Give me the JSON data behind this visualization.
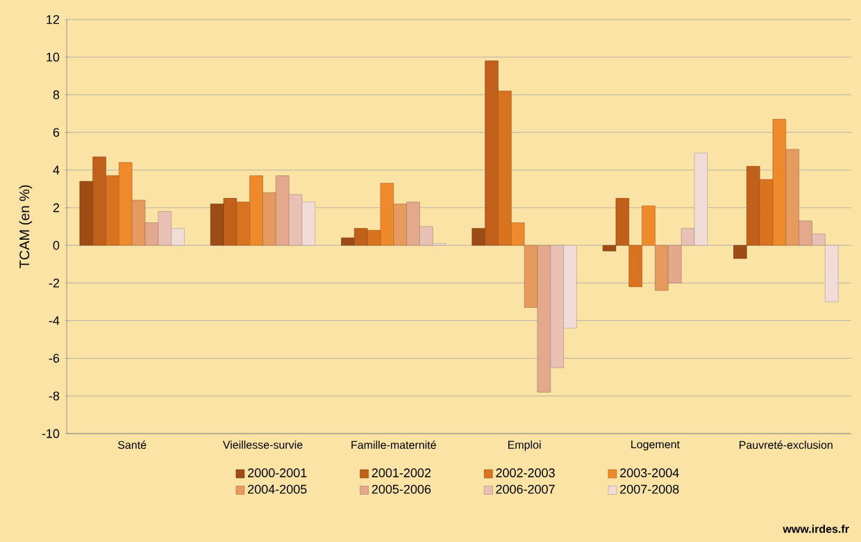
{
  "chart_data": {
    "type": "bar",
    "ylabel": "TCAM (en %)",
    "categories": [
      "Santé",
      "Vieillesse-survie",
      "Famille-maternité",
      "Emploi",
      "Logement",
      "Pauvreté-exclusion"
    ],
    "series": [
      {
        "name": "2000-2001",
        "color": "#9c4c14",
        "values": [
          3.4,
          2.2,
          0.4,
          0.9,
          -0.3,
          -0.7
        ]
      },
      {
        "name": "2001-2002",
        "color": "#c0601a",
        "values": [
          4.7,
          2.5,
          0.9,
          9.8,
          2.5,
          4.2
        ]
      },
      {
        "name": "2002-2003",
        "color": "#d9731f",
        "values": [
          3.7,
          2.3,
          0.8,
          8.2,
          -2.2,
          3.5
        ]
      },
      {
        "name": "2003-2004",
        "color": "#ee8a2c",
        "values": [
          4.4,
          3.7,
          3.3,
          1.2,
          2.1,
          6.7
        ]
      },
      {
        "name": "2004-2005",
        "color": "#e79a5e",
        "values": [
          2.4,
          2.8,
          2.2,
          -3.3,
          -2.4,
          5.1
        ]
      },
      {
        "name": "2005-2006",
        "color": "#e4a98c",
        "values": [
          1.2,
          3.7,
          2.3,
          -7.8,
          -2.0,
          1.3
        ]
      },
      {
        "name": "2006-2007",
        "color": "#e8c0b4",
        "values": [
          1.8,
          2.7,
          1.0,
          -6.5,
          0.9,
          0.6
        ]
      },
      {
        "name": "2007-2008",
        "color": "#f2dcd8",
        "values": [
          0.9,
          2.3,
          0.1,
          -4.4,
          4.9,
          -3.0
        ]
      }
    ],
    "ylim": [
      -10,
      12
    ],
    "yticks": [
      -10,
      -8,
      -6,
      -4,
      -2,
      0,
      2,
      4,
      6,
      8,
      10,
      12
    ],
    "grid": "y",
    "legend": "bottom",
    "annotations": [
      "www.irdes.fr"
    ]
  }
}
